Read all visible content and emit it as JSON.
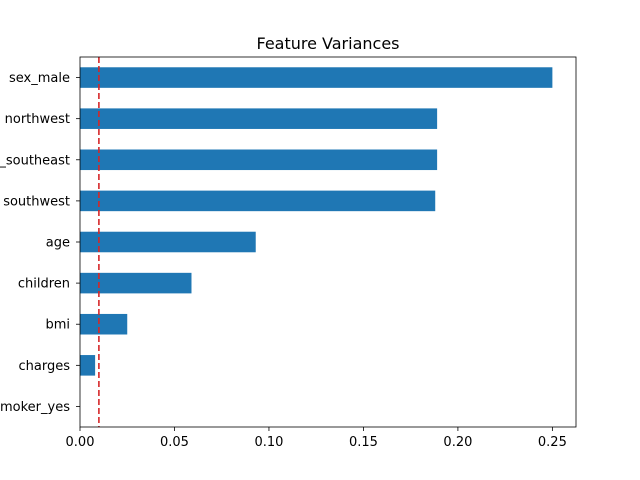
{
  "chart_data": {
    "type": "bar",
    "orientation": "horizontal",
    "title": "Feature Variances",
    "xlabel": "",
    "ylabel": "",
    "categories": [
      "sex_male",
      "region_northwest",
      "region_southeast",
      "region_southwest",
      "age",
      "children",
      "bmi",
      "charges",
      "smoker_yes"
    ],
    "category_labels": [
      "sex_male",
      "northwest",
      "_southeast",
      "southwest",
      "age",
      "children",
      "bmi",
      "charges",
      "moker_yes"
    ],
    "values": [
      0.25,
      0.189,
      0.189,
      0.188,
      0.093,
      0.059,
      0.025,
      0.008,
      0.0
    ],
    "xlim": [
      0,
      0.2625
    ],
    "xticks": [
      0.0,
      0.05,
      0.1,
      0.15,
      0.2,
      0.25
    ],
    "xtick_labels": [
      "0.00",
      "0.05",
      "0.10",
      "0.15",
      "0.20",
      "0.25"
    ],
    "threshold": 0.01,
    "bar_color": "#1f77b4",
    "threshold_color": "#d62728",
    "grid": false,
    "legend": "none"
  }
}
